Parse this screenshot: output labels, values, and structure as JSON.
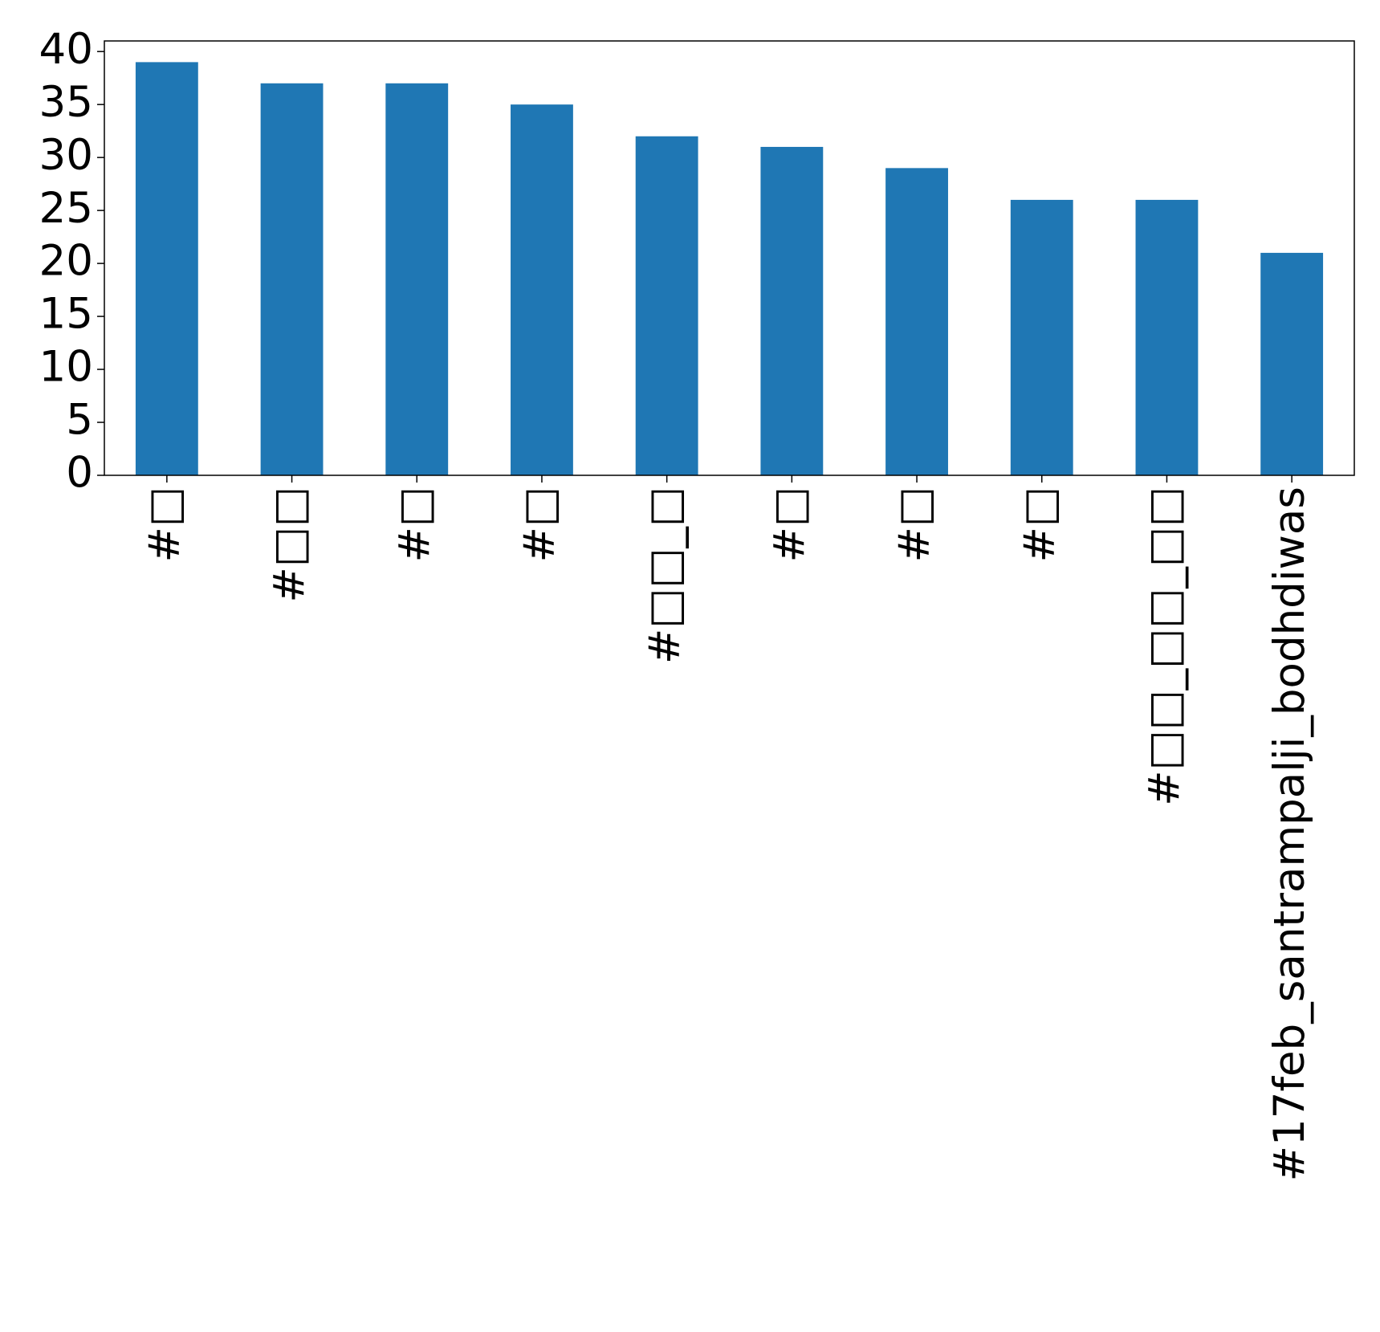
{
  "chart_data": {
    "type": "bar",
    "categories": [
      "#□",
      "#□□",
      "#□",
      "#□",
      "#□□_□",
      "#□",
      "#□",
      "#□",
      "#□□_□□_□□",
      "#17feb_santrampalji_bodhdiwas"
    ],
    "values": [
      39,
      37,
      37,
      35,
      32,
      31,
      29,
      26,
      26,
      21
    ],
    "color": "#1f77b4",
    "ylim": [
      0,
      41
    ],
    "yticks": [
      0,
      5,
      10,
      15,
      20,
      25,
      30,
      35,
      40
    ],
    "grid": false
  }
}
